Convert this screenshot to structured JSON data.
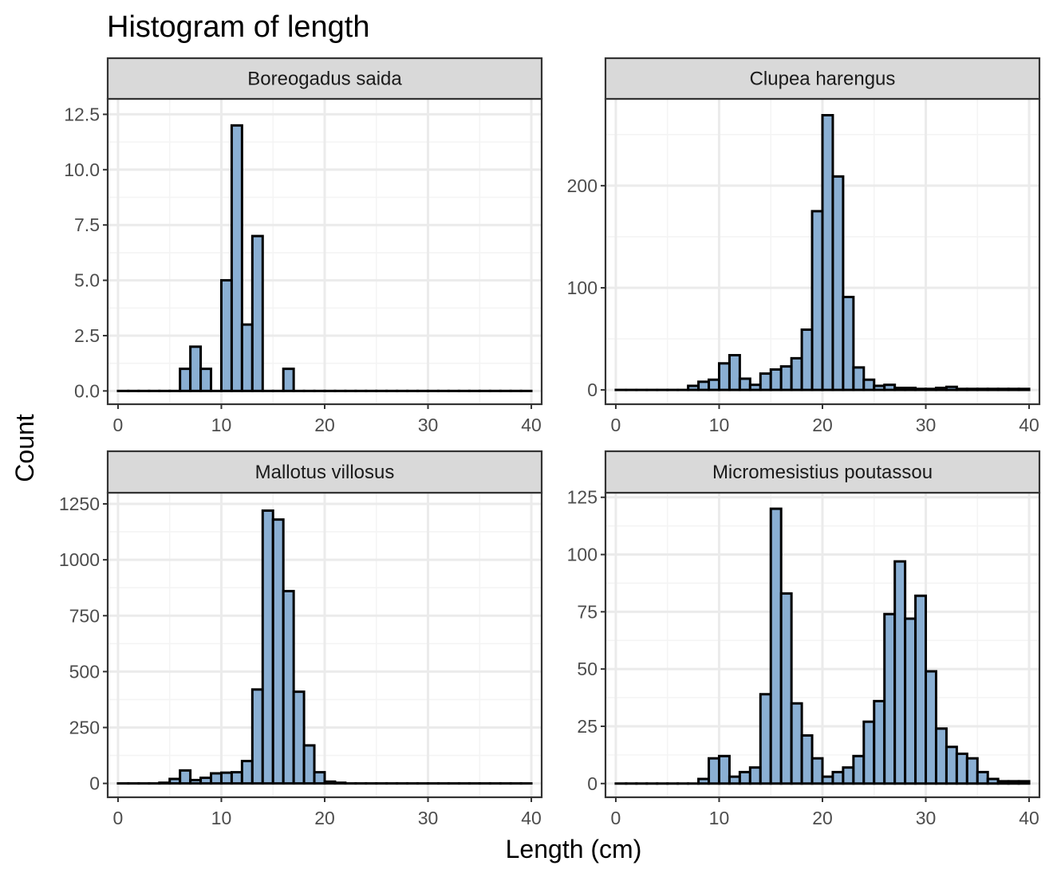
{
  "chart_data": {
    "type": "bar",
    "title": "Histogram of length",
    "xlabel": "Length (cm)",
    "ylabel": "Count",
    "xlim": [
      -1,
      41
    ],
    "x_ticks": [
      0,
      10,
      20,
      30,
      40
    ],
    "bin_width": 1,
    "bin_start": 0,
    "grid": true,
    "colors": {
      "fill": "#8aafd3",
      "stroke": "#000000",
      "strip_bg": "#d9d9d9",
      "grid_major": "#ebebeb",
      "grid_minor": "#f4f4f4",
      "panel_border": "#333333"
    },
    "panels": [
      {
        "name": "Boreogadus saida",
        "ylim": [
          -0.6,
          13.2
        ],
        "y_ticks": [
          0,
          2.5,
          5,
          7.5,
          10,
          12.5
        ],
        "y_tick_labels": [
          "0.0",
          "2.5",
          "5.0",
          "7.5",
          "10.0",
          "12.5"
        ],
        "values": [
          0,
          0,
          0,
          0,
          0,
          0,
          1,
          2,
          1,
          0,
          5,
          12,
          3,
          7,
          0,
          0,
          1,
          0,
          0,
          0,
          0,
          0,
          0,
          0,
          0,
          0,
          0,
          0,
          0,
          0,
          0,
          0,
          0,
          0,
          0,
          0,
          0,
          0,
          0,
          0
        ]
      },
      {
        "name": "Clupea harengus",
        "ylim": [
          -14,
          285
        ],
        "y_ticks": [
          0,
          100,
          200
        ],
        "y_tick_labels": [
          "0",
          "100",
          "200"
        ],
        "values": [
          0,
          0,
          0,
          0,
          0,
          0,
          0,
          4,
          8,
          10,
          26,
          34,
          11,
          5,
          16,
          20,
          23,
          31,
          59,
          175,
          269,
          209,
          91,
          22,
          10,
          4,
          5,
          2,
          2,
          1,
          1,
          2,
          3,
          1,
          1,
          1,
          1,
          1,
          1,
          1
        ]
      },
      {
        "name": "Mallotus villosus",
        "ylim": [
          -62,
          1300
        ],
        "y_ticks": [
          0,
          250,
          500,
          750,
          1000,
          1250
        ],
        "y_tick_labels": [
          "0",
          "250",
          "500",
          "750",
          "1000",
          "1250"
        ],
        "values": [
          0,
          0,
          0,
          0,
          3,
          20,
          58,
          15,
          25,
          45,
          48,
          50,
          100,
          420,
          1220,
          1180,
          860,
          410,
          170,
          50,
          8,
          3,
          0,
          0,
          0,
          0,
          0,
          0,
          0,
          0,
          0,
          0,
          0,
          0,
          0,
          0,
          0,
          0,
          0,
          0
        ]
      },
      {
        "name": "Micromesistius poutassou",
        "ylim": [
          -6,
          127
        ],
        "y_ticks": [
          0,
          25,
          50,
          75,
          100,
          125
        ],
        "y_tick_labels": [
          "0",
          "25",
          "50",
          "75",
          "100",
          "125"
        ],
        "values": [
          0,
          0,
          0,
          0,
          0,
          0,
          0,
          0,
          2,
          11,
          12,
          3,
          5,
          7,
          39,
          120,
          83,
          35,
          21,
          11,
          3,
          5,
          7,
          12,
          27,
          36,
          74,
          97,
          72,
          82,
          49,
          24,
          16,
          13,
          11,
          5,
          2,
          1,
          1,
          1
        ]
      }
    ]
  }
}
